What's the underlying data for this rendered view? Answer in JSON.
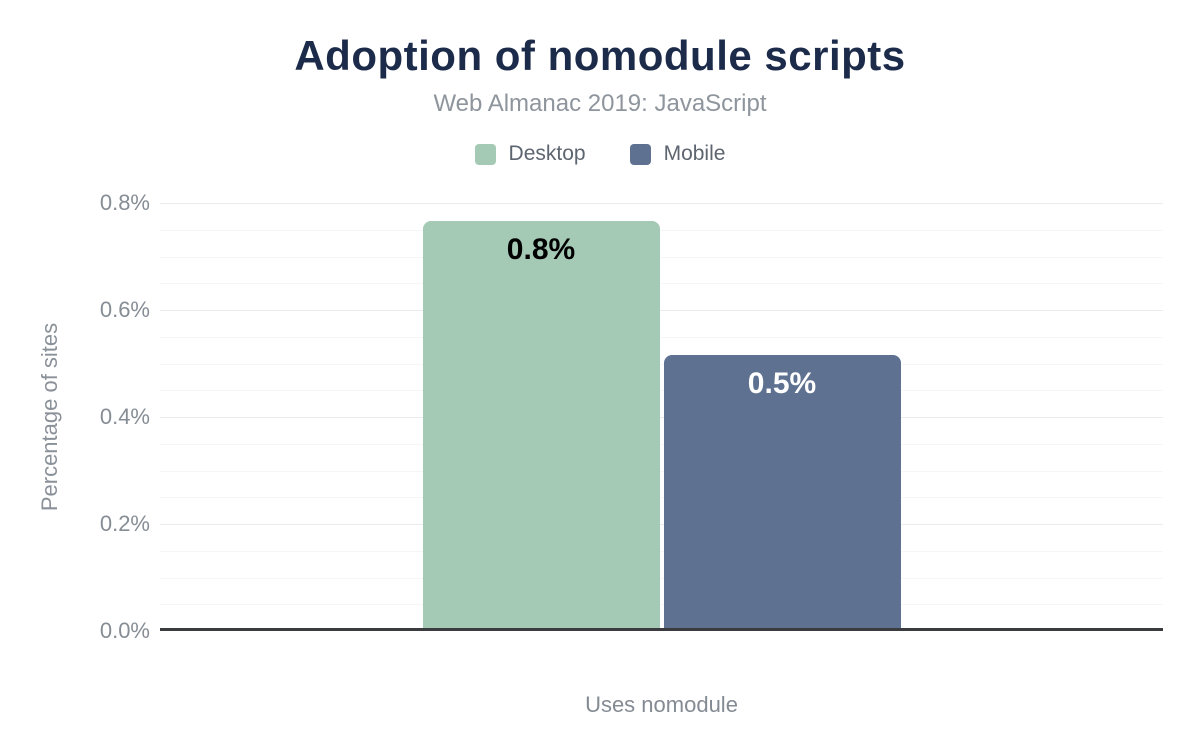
{
  "header": {
    "title": "Adoption of nomodule scripts",
    "subtitle": "Web Almanac 2019: JavaScript"
  },
  "legend": {
    "items": [
      {
        "label": "Desktop",
        "color": "#a4c9b5"
      },
      {
        "label": "Mobile",
        "color": "#5f7190"
      }
    ]
  },
  "chart_data": {
    "type": "bar",
    "title": "Adoption of nomodule scripts",
    "subtitle": "Web Almanac 2019: JavaScript",
    "categories": [
      "Uses nomodule"
    ],
    "series": [
      {
        "name": "Desktop",
        "value": 0.76,
        "data_label": "0.8%",
        "color": "#a4c9b5",
        "label_color": "#000000"
      },
      {
        "name": "Mobile",
        "value": 0.51,
        "data_label": "0.5%",
        "color": "#5f7190",
        "label_color": "#ffffff"
      }
    ],
    "xlabel": "Uses nomodule",
    "ylabel": "Percentage of sites",
    "ylim": [
      0,
      0.8
    ],
    "yticks": [
      {
        "value": 0.8,
        "label": "0.8%"
      },
      {
        "value": 0.6,
        "label": "0.6%"
      },
      {
        "value": 0.4,
        "label": "0.4%"
      },
      {
        "value": 0.2,
        "label": "0.2%"
      },
      {
        "value": 0.0,
        "label": "0.0%"
      }
    ],
    "minor_tick_step": 0.05,
    "grid": "horizontal",
    "legend_position": "top"
  },
  "colors": {
    "title": "#1c2b4a",
    "subtitle": "#8e959d",
    "tick_label": "#868d95",
    "axis_line": "#3a3c3f",
    "grid_major": "#e9ecee",
    "grid_minor": "#f4f6f7"
  }
}
